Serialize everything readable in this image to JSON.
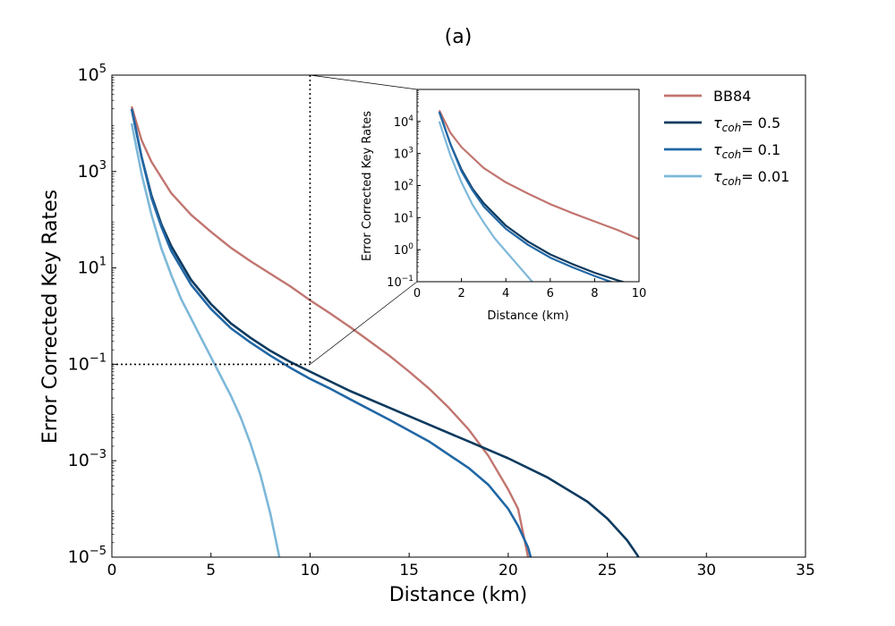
{
  "chart_data": [
    {
      "type": "line",
      "title": "(a)",
      "xlabel": "Distance (km)",
      "ylabel": "Error Corrected Key Rates",
      "xscale": "linear",
      "yscale": "log",
      "xlim": [
        0,
        35
      ],
      "ylim_exp": [
        -5,
        5
      ],
      "xticks": [
        0,
        5,
        10,
        15,
        20,
        25,
        30,
        35
      ],
      "yticks_exp": [
        -5,
        -3,
        -1,
        1,
        3,
        5
      ],
      "legend_position": "top-right",
      "zoom_marker": {
        "x": 10,
        "y_exp": -1
      },
      "series": [
        {
          "name": "BB84",
          "name_base": "BB84",
          "name_sub": "",
          "name_tail": "",
          "color": "#c1756f",
          "x": [
            1,
            1.5,
            2,
            3,
            4,
            5,
            6,
            7,
            8,
            9,
            10,
            11,
            12,
            13,
            14,
            15,
            16,
            17,
            18,
            19,
            20,
            20.5,
            20.8,
            21,
            21.1
          ],
          "y_exp": [
            4.35,
            3.65,
            3.2,
            2.55,
            2.1,
            1.75,
            1.42,
            1.14,
            0.88,
            0.62,
            0.33,
            0.06,
            -0.22,
            -0.52,
            -0.82,
            -1.15,
            -1.5,
            -1.9,
            -2.35,
            -2.9,
            -3.6,
            -4.0,
            -4.6,
            -5.0,
            -5.3
          ],
          "width": 2.4
        },
        {
          "name": "τcoh= 0.5",
          "name_base": "τ",
          "name_sub": "coh",
          "name_tail": "= 0.5",
          "color": "#0d3a5e",
          "x": [
            1,
            1.5,
            2,
            2.5,
            3,
            4,
            5,
            6,
            7,
            8,
            9,
            10,
            12,
            14,
            16,
            18,
            20,
            22,
            24,
            25,
            26,
            26.5,
            26.7
          ],
          "y_exp": [
            4.3,
            3.3,
            2.5,
            1.9,
            1.45,
            0.75,
            0.25,
            -0.15,
            -0.45,
            -0.72,
            -0.95,
            -1.15,
            -1.55,
            -1.9,
            -2.25,
            -2.6,
            -2.95,
            -3.35,
            -3.85,
            -4.2,
            -4.65,
            -4.95,
            -5.1
          ],
          "width": 2.6
        },
        {
          "name": "τcoh= 0.1",
          "name_base": "τ",
          "name_sub": "coh",
          "name_tail": "= 0.1",
          "color": "#2167a5",
          "x": [
            1,
            1.5,
            2,
            2.5,
            3,
            4,
            5,
            6,
            7,
            8,
            9,
            10,
            11,
            12,
            14,
            16,
            18,
            19,
            20,
            20.5,
            21,
            21.2
          ],
          "y_exp": [
            4.3,
            3.3,
            2.45,
            1.85,
            1.35,
            0.65,
            0.15,
            -0.25,
            -0.55,
            -0.82,
            -1.07,
            -1.3,
            -1.5,
            -1.72,
            -2.15,
            -2.6,
            -3.15,
            -3.5,
            -4.0,
            -4.35,
            -4.8,
            -5.1
          ],
          "width": 2.6
        },
        {
          "name": "τcoh= 0.01",
          "name_base": "τ",
          "name_sub": "coh",
          "name_tail": "= 0.01",
          "color": "#7db8d9",
          "x": [
            1,
            1.5,
            2,
            2.5,
            3,
            3.5,
            4,
            4.5,
            5,
            5.5,
            6,
            6.5,
            7,
            7.5,
            8,
            8.3,
            8.5
          ],
          "y_exp": [
            4.0,
            2.95,
            2.1,
            1.4,
            0.85,
            0.35,
            -0.05,
            -0.45,
            -0.85,
            -1.25,
            -1.65,
            -2.1,
            -2.65,
            -3.3,
            -4.1,
            -4.7,
            -5.1
          ],
          "width": 2.6
        }
      ]
    },
    {
      "type": "line",
      "title": "",
      "xlabel": "Distance (km)",
      "ylabel": "Error Corrected Key Rates",
      "xscale": "linear",
      "yscale": "log",
      "xlim": [
        0,
        10
      ],
      "ylim_exp": [
        -1,
        5
      ],
      "xticks": [
        0,
        2,
        4,
        6,
        8,
        10
      ],
      "yticks_exp": [
        -1,
        0,
        1,
        2,
        3,
        4
      ],
      "series_ref": "same as main plot"
    }
  ]
}
